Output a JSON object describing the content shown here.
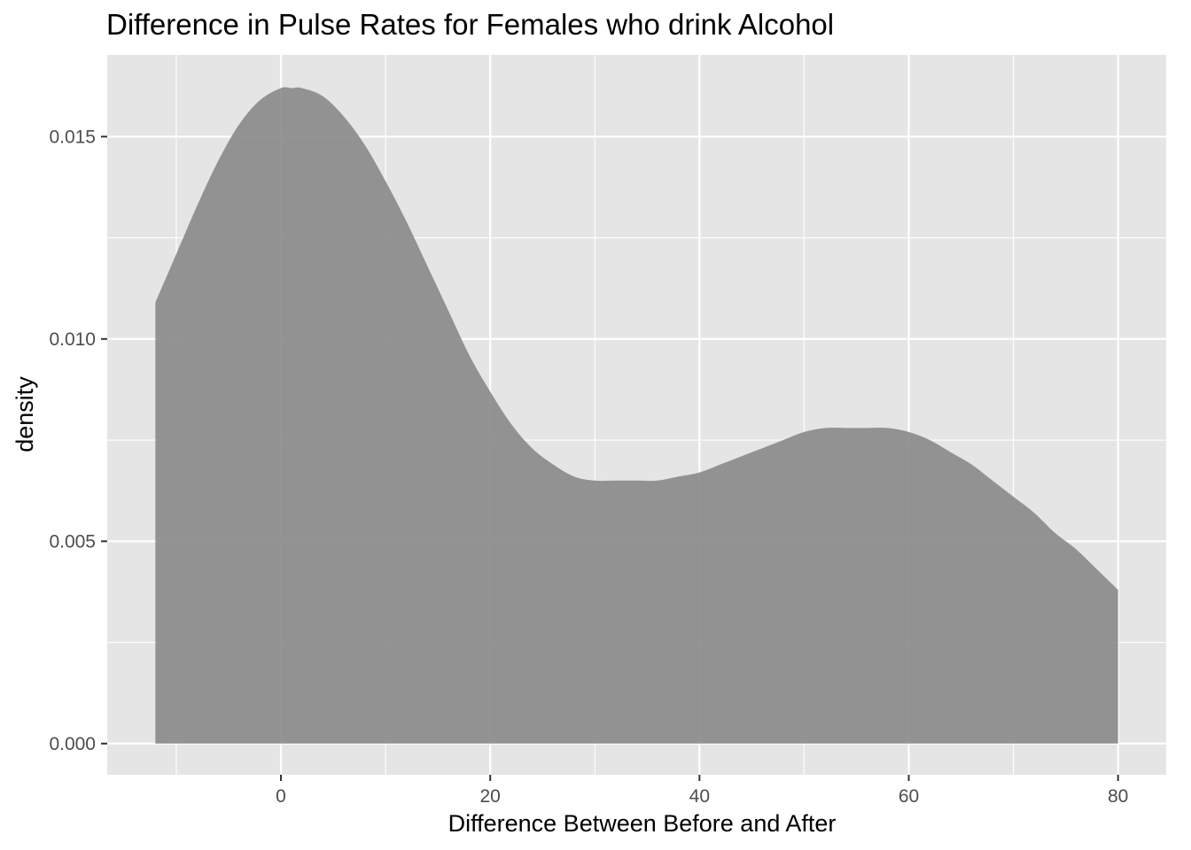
{
  "chart_data": {
    "type": "area",
    "title": "Difference in Pulse Rates for Females who drink Alcohol",
    "xlabel": "Difference Between Before and After",
    "ylabel": "density",
    "xlim": [
      -16.6,
      84.6
    ],
    "ylim": [
      -0.00077,
      0.01702
    ],
    "x_ticks": [
      0,
      20,
      40,
      60,
      80
    ],
    "x_tick_labels": [
      "0",
      "20",
      "40",
      "60",
      "80"
    ],
    "y_ticks": [
      0.0,
      0.005,
      0.01,
      0.015
    ],
    "y_tick_labels": [
      "0.000",
      "0.005",
      "0.010",
      "0.015"
    ],
    "grid": true,
    "fill_color": "#888888",
    "panel_background": "#e5e5e5",
    "grid_color": "#ffffff",
    "series": [
      {
        "x": [
          -12,
          -10,
          -8,
          -6,
          -4,
          -2,
          0,
          1,
          2,
          4,
          6,
          8,
          10,
          12,
          14,
          16,
          18,
          20,
          22,
          24,
          26,
          28,
          30,
          32,
          34,
          36,
          38,
          40,
          42,
          44,
          46,
          48,
          50,
          52,
          54,
          55,
          56,
          58,
          60,
          62,
          64,
          66,
          68,
          70,
          72,
          74,
          76,
          78,
          80
        ],
        "y": [
          0.0109,
          0.0121,
          0.0133,
          0.0144,
          0.0153,
          0.0159,
          0.0162,
          0.0162,
          0.0162,
          0.016,
          0.0155,
          0.0148,
          0.0139,
          0.0129,
          0.0118,
          0.0107,
          0.0096,
          0.0087,
          0.0079,
          0.0073,
          0.0069,
          0.0066,
          0.0065,
          0.0065,
          0.0065,
          0.0065,
          0.0066,
          0.0067,
          0.0069,
          0.0071,
          0.0073,
          0.0075,
          0.0077,
          0.0078,
          0.0078,
          0.0078,
          0.0078,
          0.0078,
          0.0077,
          0.0075,
          0.0072,
          0.0069,
          0.0065,
          0.0061,
          0.0057,
          0.0052,
          0.0048,
          0.0043,
          0.0038
        ]
      }
    ]
  }
}
